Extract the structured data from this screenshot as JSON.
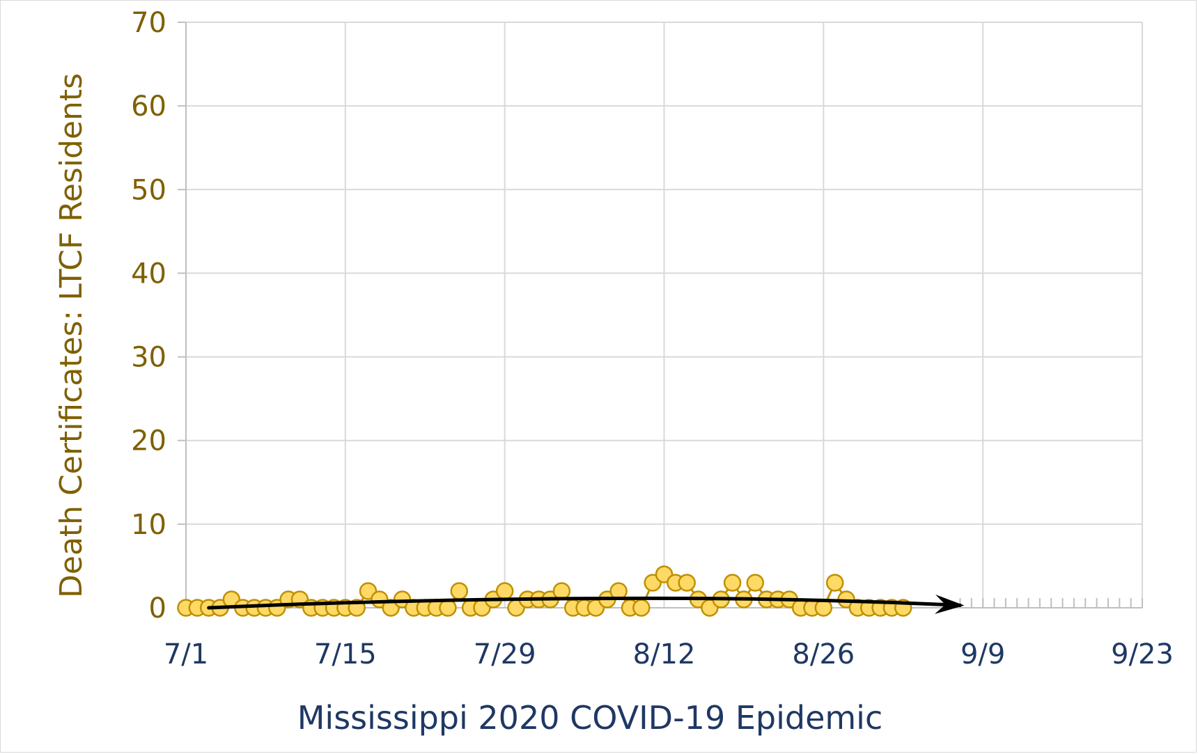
{
  "chart_data": {
    "type": "scatter",
    "xlabel": "Mississippi 2020 COVID-19 Epidemic",
    "ylabel": "Death Certificates: LTCF Residents",
    "ylim": [
      0,
      70
    ],
    "yticks": [
      "0",
      "10",
      "20",
      "30",
      "40",
      "50",
      "60",
      "70"
    ],
    "xticks": [
      "7/1",
      "7/15",
      "7/29",
      "8/12",
      "8/26",
      "9/9",
      "9/23"
    ],
    "xlim": [
      "2020-07-01",
      "2020-09-23"
    ],
    "grid": true,
    "x": [
      "2020-07-01",
      "2020-07-02",
      "2020-07-03",
      "2020-07-04",
      "2020-07-05",
      "2020-07-06",
      "2020-07-07",
      "2020-07-08",
      "2020-07-09",
      "2020-07-10",
      "2020-07-11",
      "2020-07-12",
      "2020-07-13",
      "2020-07-14",
      "2020-07-15",
      "2020-07-16",
      "2020-07-17",
      "2020-07-18",
      "2020-07-19",
      "2020-07-20",
      "2020-07-21",
      "2020-07-22",
      "2020-07-23",
      "2020-07-24",
      "2020-07-25",
      "2020-07-26",
      "2020-07-27",
      "2020-07-28",
      "2020-07-29",
      "2020-07-30",
      "2020-07-31",
      "2020-08-01",
      "2020-08-02",
      "2020-08-03",
      "2020-08-04",
      "2020-08-05",
      "2020-08-06",
      "2020-08-07",
      "2020-08-08",
      "2020-08-09",
      "2020-08-10",
      "2020-08-11",
      "2020-08-12",
      "2020-08-13",
      "2020-08-14",
      "2020-08-15",
      "2020-08-16",
      "2020-08-17",
      "2020-08-18",
      "2020-08-19",
      "2020-08-20",
      "2020-08-21",
      "2020-08-22",
      "2020-08-23",
      "2020-08-24",
      "2020-08-25",
      "2020-08-26",
      "2020-08-27",
      "2020-08-28",
      "2020-08-29",
      "2020-08-30",
      "2020-08-31",
      "2020-09-01",
      "2020-09-02"
    ],
    "series": [
      {
        "type": "line-markers",
        "color": "#ffd966",
        "stroke": "#bf9000",
        "values": [
          0,
          0,
          0,
          0,
          1,
          0,
          0,
          0,
          0,
          1,
          1,
          0,
          0,
          0,
          0,
          0,
          2,
          1,
          0,
          1,
          0,
          0,
          0,
          0,
          2,
          0,
          0,
          1,
          2,
          0,
          1,
          1,
          1,
          2,
          0,
          0,
          0,
          1,
          2,
          0,
          0,
          3,
          4,
          3,
          3,
          1,
          0,
          1,
          3,
          1,
          3,
          1,
          1,
          1,
          0,
          0,
          0,
          3,
          1,
          0,
          0,
          0,
          0,
          0
        ]
      },
      {
        "type": "trend-arrow",
        "color": "#000000",
        "x": [
          "2020-07-03",
          "2020-07-10",
          "2020-07-20",
          "2020-07-30",
          "2020-08-09",
          "2020-08-19",
          "2020-08-29",
          "2020-09-07"
        ],
        "values": [
          0,
          0.4,
          0.8,
          1.05,
          1.15,
          1.1,
          0.8,
          0.3
        ]
      }
    ],
    "projection_ticks": {
      "from": "2020-09-07",
      "to": "2020-09-23"
    }
  }
}
